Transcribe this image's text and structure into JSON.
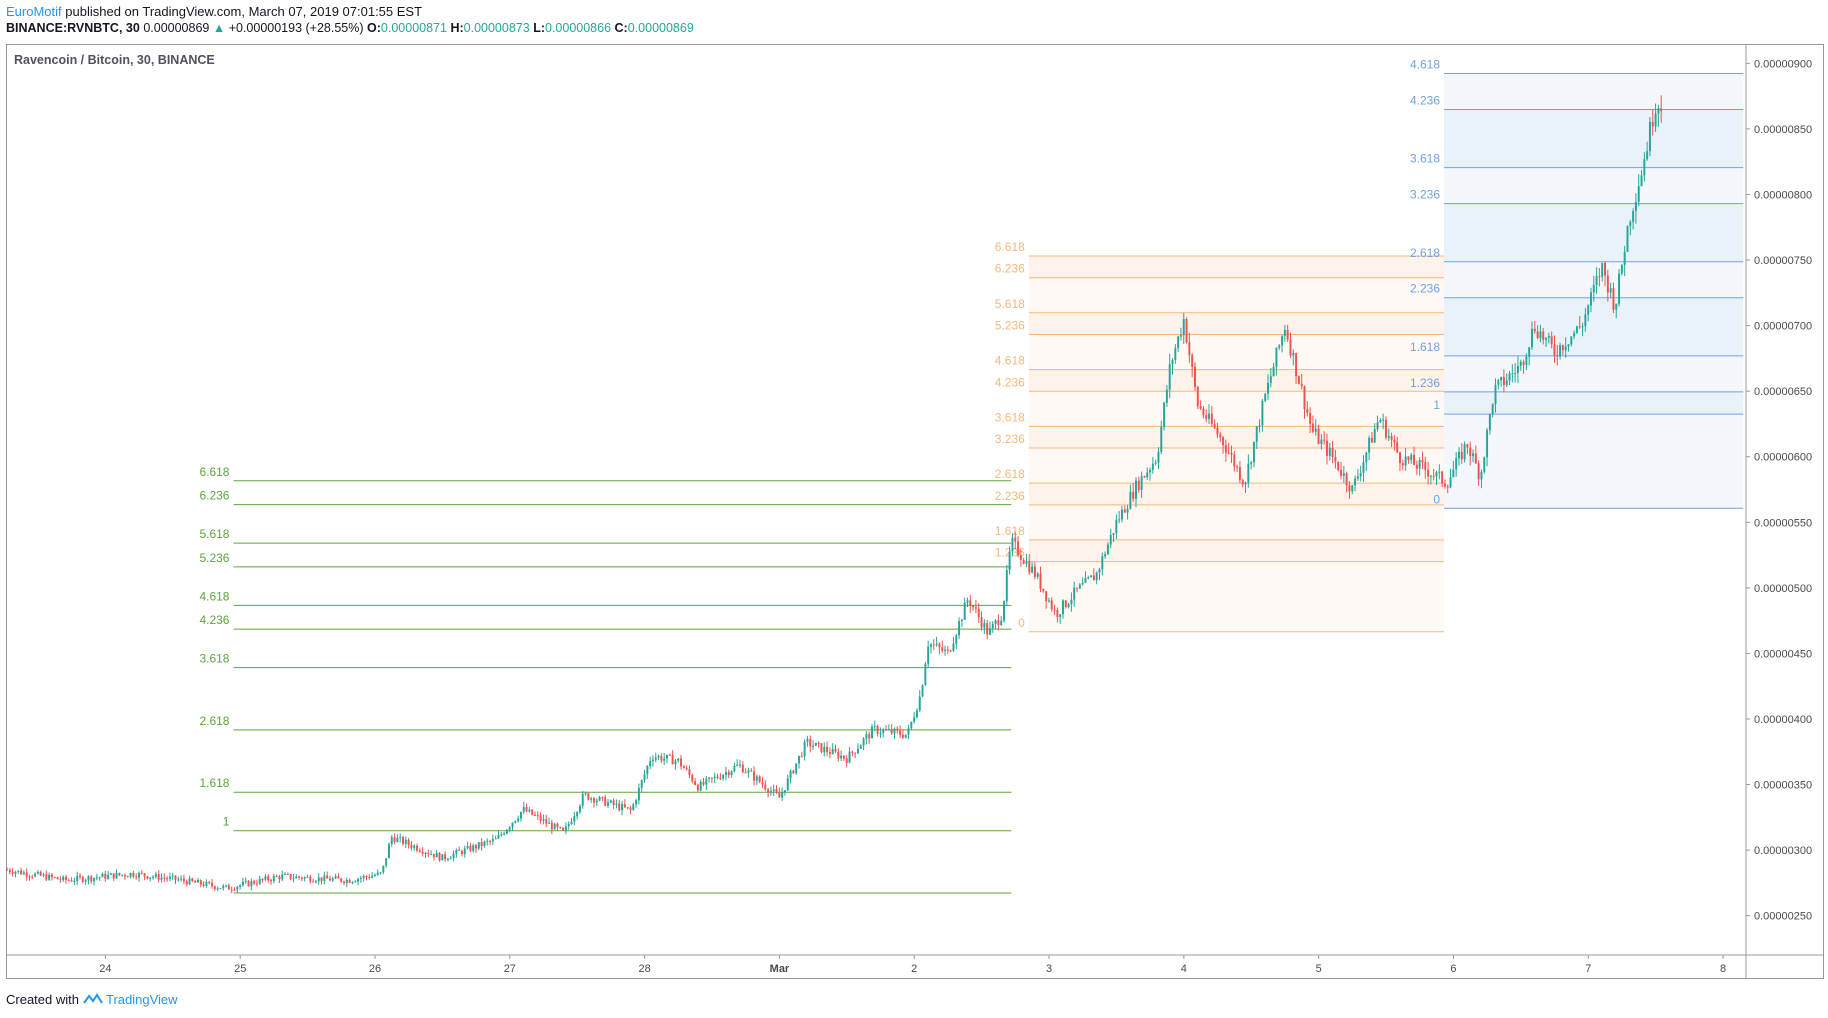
{
  "header": {
    "author": "EuroMotif",
    "published_text": "published on TradingView.com, March 07, 2019 07:01:55 EST",
    "symbol": "BINANCE:RVNBTC, 30",
    "last": "0.00000869",
    "change": "+0.00000193 (+28.55%)",
    "o_label": "O:",
    "o": "0.00000871",
    "h_label": "H:",
    "h": "0.00000873",
    "l_label": "L:",
    "l": "0.00000866",
    "c_label": "C:",
    "c": "0.00000869"
  },
  "chart_title": "Ravencoin / Bitcoin, 30, BINANCE",
  "footer": {
    "created": "Created with",
    "brand": "TradingView"
  },
  "colors": {
    "up": "#26a69a",
    "down": "#ef5350",
    "green_fib": "#5ba53b",
    "orange_fib": "#f5b77a",
    "blue_fib": "#6fa2dc",
    "grid": "#e0e3eb",
    "axis_text": "#4a4a4a"
  },
  "chart_data": {
    "type": "candlestick",
    "title": "Ravencoin / Bitcoin, 30, BINANCE",
    "y_ticks": [
      "0.00000250",
      "0.00000300",
      "0.00000350",
      "0.00000400",
      "0.00000450",
      "0.00000500",
      "0.00000550",
      "0.00000600",
      "0.00000650",
      "0.00000700",
      "0.00000750",
      "0.00000800",
      "0.00000850",
      "0.00000900"
    ],
    "ylim": [
      2.2e-06,
      9.14e-06
    ],
    "x_ticks": [
      "24",
      "25",
      "26",
      "27",
      "28",
      "Mar",
      "2",
      "3",
      "4",
      "5",
      "6",
      "7",
      "8"
    ],
    "xlim": [
      23.27,
      36.17
    ],
    "price_path": [
      [
        23.27,
        2.85e-06
      ],
      [
        23.7,
        2.77e-06
      ],
      [
        24.2,
        2.82e-06
      ],
      [
        24.5,
        2.78e-06
      ],
      [
        24.9,
        2.71e-06
      ],
      [
        25.3,
        2.8e-06
      ],
      [
        25.8,
        2.77e-06
      ],
      [
        26.05,
        2.82e-06
      ],
      [
        26.12,
        3.1e-06
      ],
      [
        26.5,
        2.94e-06
      ],
      [
        26.9,
        3.08e-06
      ],
      [
        27.1,
        3.31e-06
      ],
      [
        27.4,
        3.13e-06
      ],
      [
        27.55,
        3.42e-06
      ],
      [
        27.9,
        3.3e-06
      ],
      [
        28.05,
        3.72e-06
      ],
      [
        28.25,
        3.68e-06
      ],
      [
        28.4,
        3.48e-06
      ],
      [
        28.7,
        3.65e-06
      ],
      [
        29.0,
        3.4e-06
      ],
      [
        29.2,
        3.82e-06
      ],
      [
        29.5,
        3.7e-06
      ],
      [
        29.7,
        3.92e-06
      ],
      [
        29.95,
        3.88e-06
      ],
      [
        30.05,
        4.2e-06
      ],
      [
        30.1,
        4.58e-06
      ],
      [
        30.25,
        4.5e-06
      ],
      [
        30.4,
        4.92e-06
      ],
      [
        30.55,
        4.65e-06
      ],
      [
        30.65,
        4.8e-06
      ],
      [
        30.72,
        5.35e-06
      ],
      [
        30.9,
        5.1e-06
      ],
      [
        31.05,
        4.8e-06
      ],
      [
        31.2,
        4.97e-06
      ],
      [
        31.35,
        5.1e-06
      ],
      [
        31.5,
        5.5e-06
      ],
      [
        31.65,
        5.78e-06
      ],
      [
        31.8,
        6e-06
      ],
      [
        31.9,
        6.7e-06
      ],
      [
        32.0,
        7.05e-06
      ],
      [
        32.1,
        6.4e-06
      ],
      [
        32.3,
        6.1e-06
      ],
      [
        32.45,
        5.8e-06
      ],
      [
        32.6,
        6.45e-06
      ],
      [
        32.75,
        7e-06
      ],
      [
        32.95,
        6.2e-06
      ],
      [
        33.1,
        6e-06
      ],
      [
        33.25,
        5.75e-06
      ],
      [
        33.45,
        6.3e-06
      ],
      [
        33.6,
        6e-06
      ],
      [
        33.8,
        5.9e-06
      ],
      [
        33.95,
        5.8e-06
      ],
      [
        34.1,
        6.1e-06
      ],
      [
        34.2,
        5.85e-06
      ],
      [
        34.3,
        6.5e-06
      ],
      [
        34.5,
        6.7e-06
      ],
      [
        34.6,
        7e-06
      ],
      [
        34.75,
        6.8e-06
      ],
      [
        34.95,
        7e-06
      ],
      [
        35.1,
        7.45e-06
      ],
      [
        35.2,
        7.15e-06
      ],
      [
        35.3,
        7.8e-06
      ],
      [
        35.4,
        8.2e-06
      ],
      [
        35.5,
        8.7e-06
      ],
      [
        35.55,
        8.69e-06
      ]
    ],
    "fib_sets": [
      {
        "color_key": "green_fib",
        "x_range": [
          24.95,
          30.72
        ],
        "price_0": 2.673e-06,
        "price_1": 3.148e-06,
        "levels": [
          "1",
          "1.618",
          "2.618",
          "3.618",
          "4.236",
          "4.618",
          "5.236",
          "5.618",
          "6.236",
          "6.618"
        ],
        "zero_label": "",
        "fill": false
      },
      {
        "color_key": "orange_fib",
        "x_range": [
          30.85,
          33.93
        ],
        "price_0": 4.665e-06,
        "price_1": 5.098e-06,
        "levels": [
          "0",
          "1.236",
          "1.618",
          "2.236",
          "2.618",
          "3.236",
          "3.618",
          "4.236",
          "4.618",
          "5.236",
          "5.618",
          "6.236",
          "6.618"
        ],
        "fill": true
      },
      {
        "color_key": "blue_fib",
        "x_range": [
          33.93,
          36.15
        ],
        "price_0": 5.607e-06,
        "price_1": 6.325e-06,
        "levels": [
          "0",
          "1",
          "1.236",
          "1.618",
          "2.236",
          "2.618",
          "3.236",
          "3.618",
          "4.236",
          "4.618"
        ],
        "fill": true
      }
    ]
  }
}
